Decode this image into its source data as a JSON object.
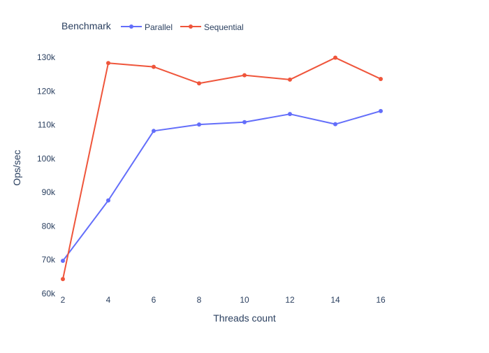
{
  "chart_data": {
    "type": "line",
    "title": "",
    "xlabel": "Threads count",
    "ylabel": "Ops/sec",
    "x": [
      2,
      4,
      6,
      8,
      10,
      12,
      14,
      16
    ],
    "x_ticks": [
      "2",
      "4",
      "6",
      "8",
      "10",
      "12",
      "14",
      "16"
    ],
    "y_ticks": [
      {
        "value": 60000,
        "label": "60k"
      },
      {
        "value": 70000,
        "label": "70k"
      },
      {
        "value": 80000,
        "label": "80k"
      },
      {
        "value": 90000,
        "label": "90k"
      },
      {
        "value": 100000,
        "label": "100k"
      },
      {
        "value": 110000,
        "label": "110k"
      },
      {
        "value": 120000,
        "label": "120k"
      },
      {
        "value": 130000,
        "label": "130k"
      }
    ],
    "xlim": [
      2,
      18
    ],
    "ylim": [
      60000,
      132500
    ],
    "grid": false,
    "legend": {
      "title": "Benchmark",
      "placement": "top-left"
    },
    "series": [
      {
        "name": "Parallel",
        "color": "#636efa",
        "values": [
          69700,
          87600,
          108200,
          110100,
          110800,
          113200,
          110200,
          114100
        ]
      },
      {
        "name": "Sequential",
        "color": "#ef553b",
        "values": [
          64300,
          128300,
          127200,
          122300,
          124700,
          123400,
          129900,
          123600
        ]
      }
    ]
  }
}
